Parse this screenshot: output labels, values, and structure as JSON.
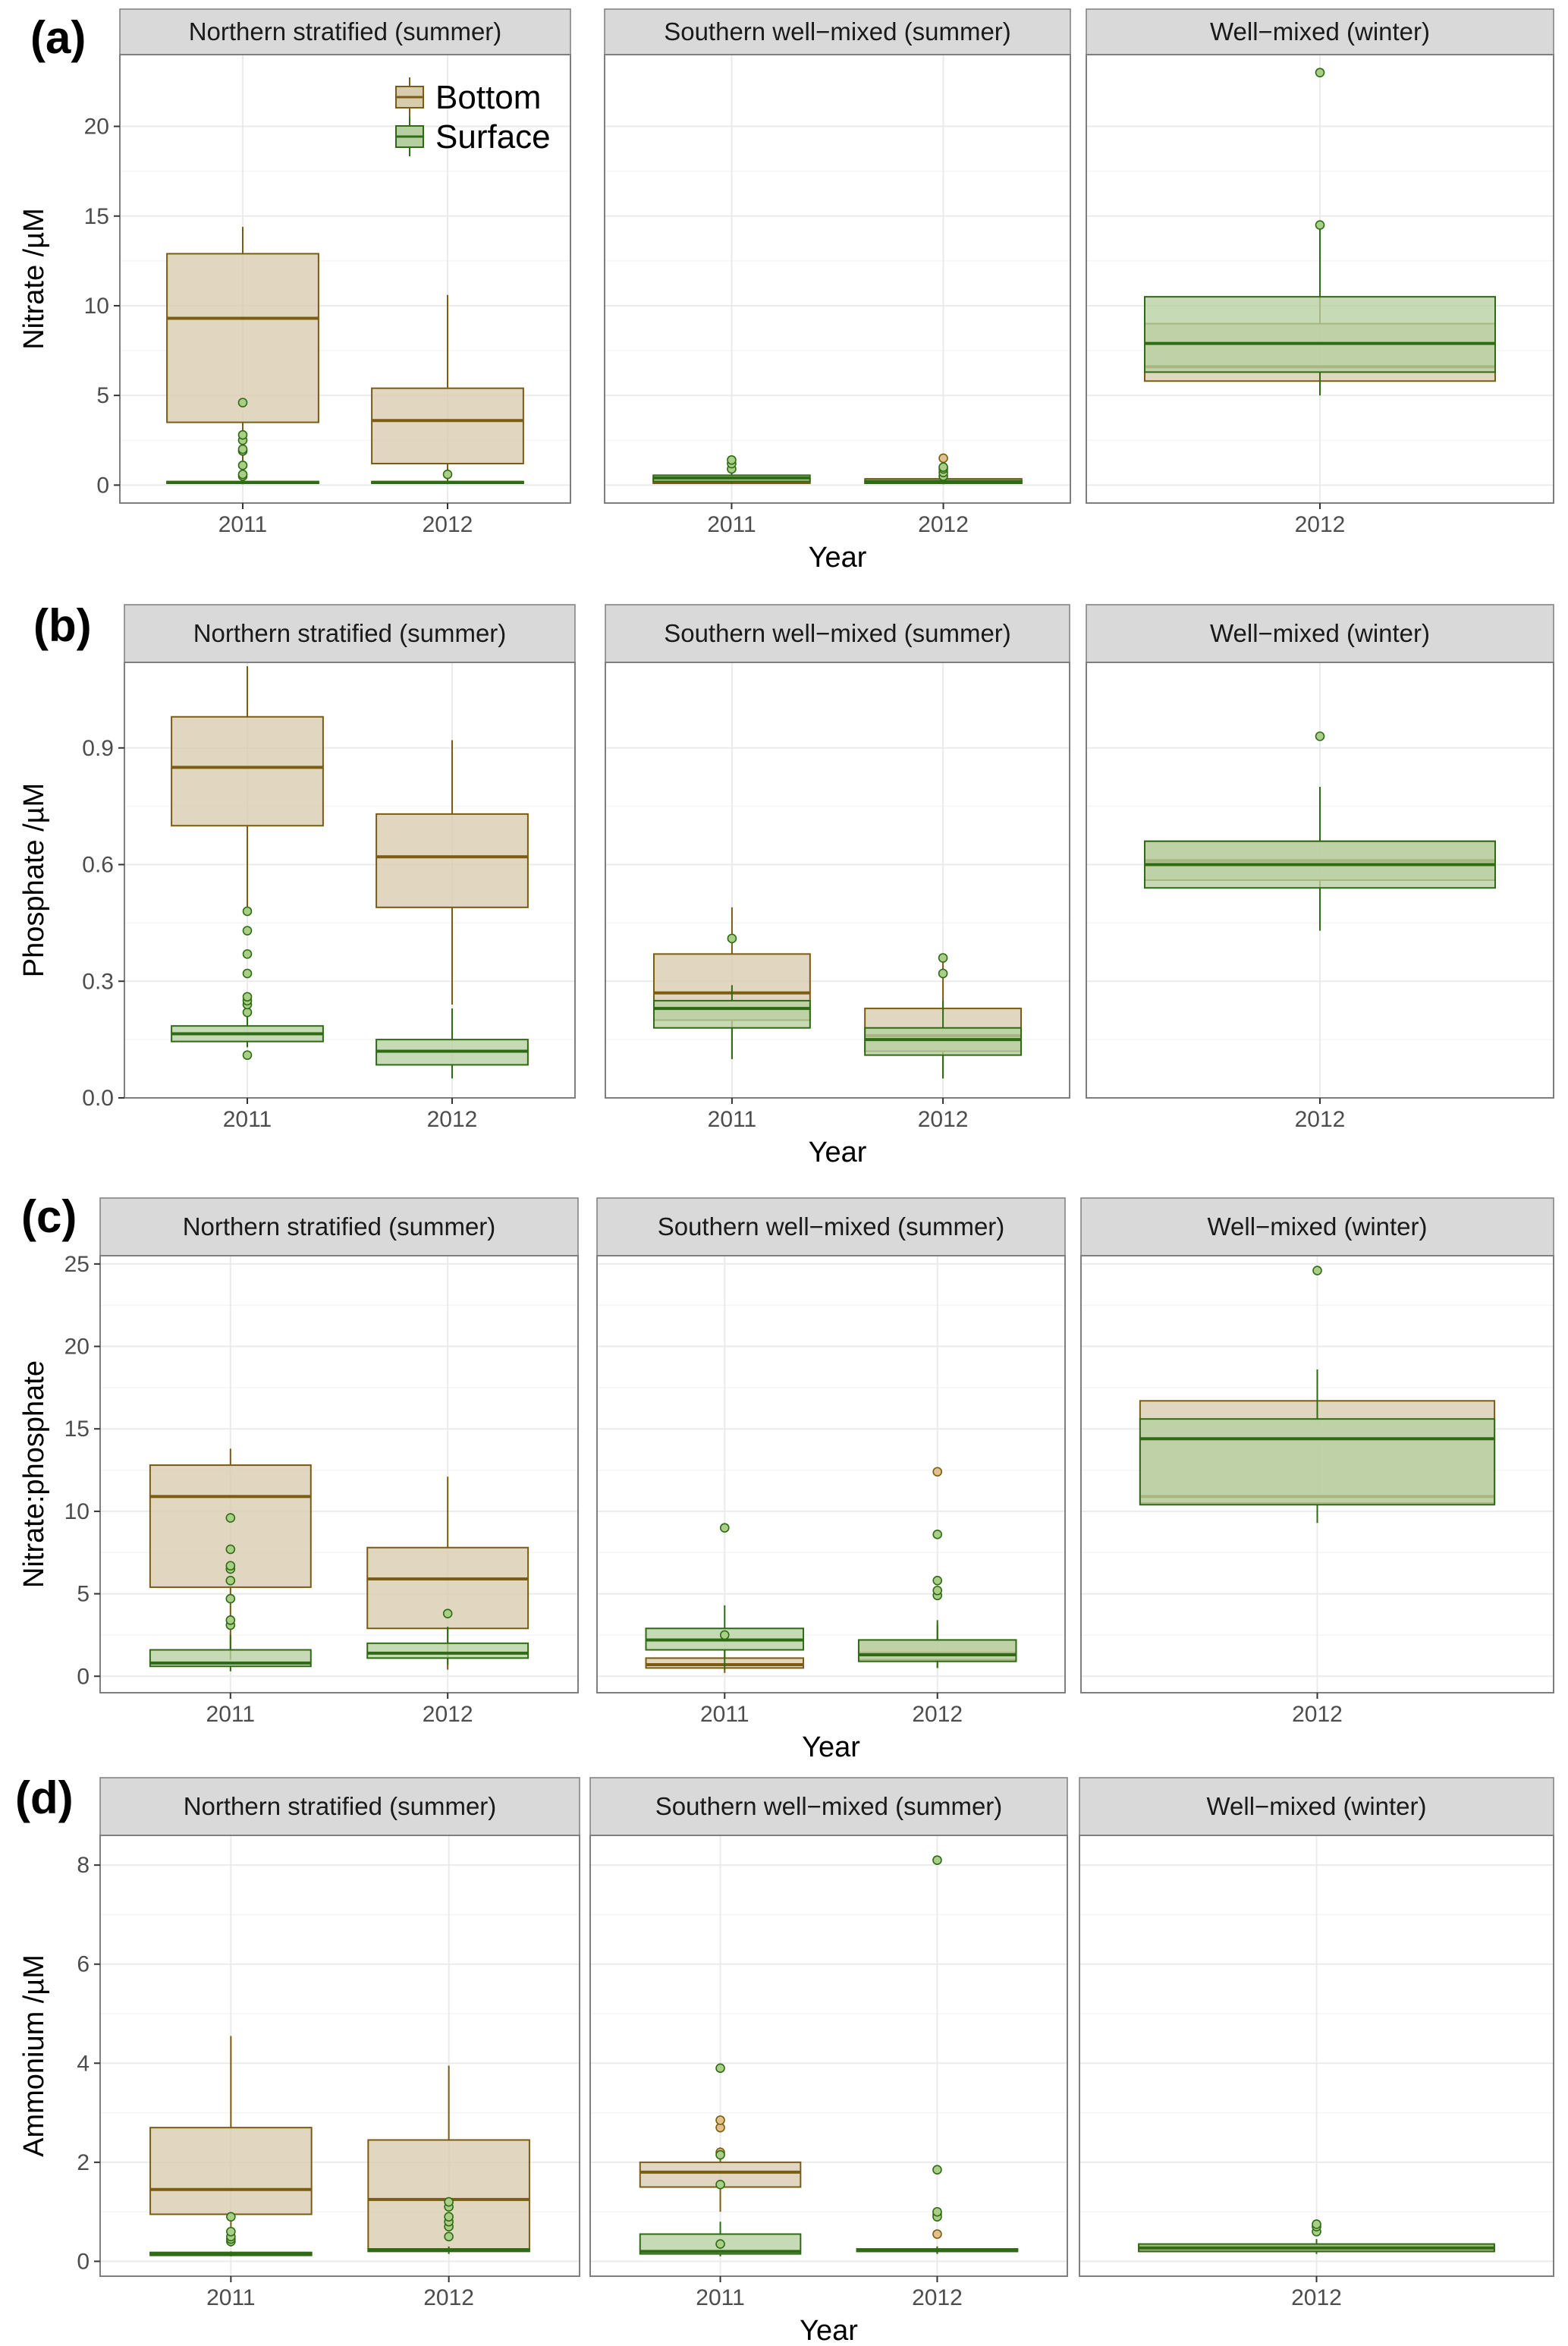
{
  "colors": {
    "bottom_fill": "#d8ccae",
    "bottom_line": "#7a5c12",
    "bottom_point_fill": "#e2c08a",
    "surface_fill": "#b5cfa0",
    "surface_line": "#2f6b14",
    "surface_point_fill": "#a9cf86",
    "strip_bg": "#d9d9d9",
    "panel_border": "#7f7f7f",
    "grid_major": "#ebebeb",
    "grid_minor": "#f5f5f5"
  },
  "legend": {
    "entries": [
      "Bottom",
      "Surface"
    ]
  },
  "chart_data": [
    {
      "type": "boxplot",
      "panel_label": "(a)",
      "ylabel": "Nitrate /µM",
      "xlabel": "Year",
      "ylim": [
        -1,
        24
      ],
      "yticks": [
        0,
        5,
        10,
        15,
        20
      ],
      "legend_position": "top-left panel",
      "facets": [
        {
          "title": "Northern stratified (summer)",
          "categories": [
            "2011",
            "2012"
          ],
          "boxes": [
            {
              "year": "2011",
              "group": "Bottom",
              "q1": 3.5,
              "median": 9.3,
              "q3": 12.9,
              "whisker_low": 0.3,
              "whisker_high": 14.4,
              "outliers": []
            },
            {
              "year": "2011",
              "group": "Surface",
              "q1": 0.1,
              "median": 0.15,
              "q3": 0.2,
              "whisker_low": 0.05,
              "whisker_high": 0.3,
              "outliers": [
                0.5,
                0.6,
                1.1,
                1.9,
                2.0,
                2.5,
                2.8,
                4.6
              ]
            },
            {
              "year": "2012",
              "group": "Bottom",
              "q1": 1.2,
              "median": 3.6,
              "q3": 5.4,
              "whisker_low": 0.1,
              "whisker_high": 10.6,
              "outliers": []
            },
            {
              "year": "2012",
              "group": "Surface",
              "q1": 0.1,
              "median": 0.15,
              "q3": 0.2,
              "whisker_low": 0.05,
              "whisker_high": 0.3,
              "outliers": [
                0.6
              ]
            }
          ]
        },
        {
          "title": "Southern well−mixed (summer)",
          "categories": [
            "2011",
            "2012"
          ],
          "boxes": [
            {
              "year": "2011",
              "group": "Bottom",
              "q1": 0.1,
              "median": 0.2,
              "q3": 0.35,
              "whisker_low": 0.05,
              "whisker_high": 0.5,
              "outliers": []
            },
            {
              "year": "2011",
              "group": "Surface",
              "q1": 0.2,
              "median": 0.4,
              "q3": 0.55,
              "whisker_low": 0.1,
              "whisker_high": 0.7,
              "outliers": [
                0.9,
                1.2,
                1.4
              ]
            },
            {
              "year": "2012",
              "group": "Bottom",
              "q1": 0.1,
              "median": 0.2,
              "q3": 0.35,
              "whisker_low": 0.05,
              "whisker_high": 0.5,
              "outliers": [
                1.5
              ]
            },
            {
              "year": "2012",
              "group": "Surface",
              "q1": 0.1,
              "median": 0.15,
              "q3": 0.25,
              "whisker_low": 0.05,
              "whisker_high": 0.35,
              "outliers": [
                0.5,
                0.7,
                0.9,
                1.0
              ]
            }
          ]
        },
        {
          "title": "Well−mixed (winter)",
          "categories": [
            "2012"
          ],
          "boxes": [
            {
              "year": "2012",
              "group": "Bottom",
              "q1": 5.8,
              "median": 6.6,
              "q3": 9.0,
              "whisker_low": 5.0,
              "whisker_high": 11.0,
              "outliers": []
            },
            {
              "year": "2012",
              "group": "Surface",
              "q1": 6.3,
              "median": 7.9,
              "q3": 10.5,
              "whisker_low": 5.0,
              "whisker_high": 14.5,
              "outliers": [
                14.5,
                23.0
              ]
            }
          ]
        }
      ]
    },
    {
      "type": "boxplot",
      "panel_label": "(b)",
      "ylabel": "Phosphate /µM",
      "xlabel": "Year",
      "ylim": [
        0,
        1.12
      ],
      "yticks": [
        0.0,
        0.3,
        0.6,
        0.9
      ],
      "facets": [
        {
          "title": "Northern stratified (summer)",
          "categories": [
            "2011",
            "2012"
          ],
          "boxes": [
            {
              "year": "2011",
              "group": "Bottom",
              "q1": 0.7,
              "median": 0.85,
              "q3": 0.98,
              "whisker_low": 0.47,
              "whisker_high": 1.11,
              "outliers": []
            },
            {
              "year": "2011",
              "group": "Surface",
              "q1": 0.145,
              "median": 0.165,
              "q3": 0.185,
              "whisker_low": 0.13,
              "whisker_high": 0.21,
              "outliers": [
                0.11,
                0.22,
                0.24,
                0.25,
                0.26,
                0.32,
                0.37,
                0.43,
                0.48
              ]
            },
            {
              "year": "2012",
              "group": "Bottom",
              "q1": 0.49,
              "median": 0.62,
              "q3": 0.73,
              "whisker_low": 0.24,
              "whisker_high": 0.92,
              "outliers": []
            },
            {
              "year": "2012",
              "group": "Surface",
              "q1": 0.085,
              "median": 0.12,
              "q3": 0.15,
              "whisker_low": 0.05,
              "whisker_high": 0.23,
              "outliers": []
            }
          ]
        },
        {
          "title": "Southern well−mixed (summer)",
          "categories": [
            "2011",
            "2012"
          ],
          "boxes": [
            {
              "year": "2011",
              "group": "Bottom",
              "q1": 0.2,
              "median": 0.27,
              "q3": 0.37,
              "whisker_low": 0.1,
              "whisker_high": 0.49,
              "outliers": []
            },
            {
              "year": "2011",
              "group": "Surface",
              "q1": 0.18,
              "median": 0.23,
              "q3": 0.25,
              "whisker_low": 0.1,
              "whisker_high": 0.29,
              "outliers": [
                0.41
              ]
            },
            {
              "year": "2012",
              "group": "Bottom",
              "q1": 0.12,
              "median": 0.16,
              "q3": 0.23,
              "whisker_low": 0.05,
              "whisker_high": 0.36,
              "outliers": []
            },
            {
              "year": "2012",
              "group": "Surface",
              "q1": 0.11,
              "median": 0.15,
              "q3": 0.18,
              "whisker_low": 0.05,
              "whisker_high": 0.25,
              "outliers": [
                0.32,
                0.36
              ]
            }
          ]
        },
        {
          "title": "Well−mixed (winter)",
          "categories": [
            "2012"
          ],
          "boxes": [
            {
              "year": "2012",
              "group": "Bottom",
              "q1": 0.56,
              "median": 0.61,
              "q3": 0.66,
              "whisker_low": 0.45,
              "whisker_high": 0.78,
              "outliers": []
            },
            {
              "year": "2012",
              "group": "Surface",
              "q1": 0.54,
              "median": 0.6,
              "q3": 0.66,
              "whisker_low": 0.43,
              "whisker_high": 0.8,
              "outliers": [
                0.93
              ]
            }
          ]
        }
      ]
    },
    {
      "type": "boxplot",
      "panel_label": "(c)",
      "ylabel": "Nitrate:phosphate",
      "xlabel": "Year",
      "ylim": [
        -1,
        25.5
      ],
      "yticks": [
        0,
        5,
        10,
        15,
        20,
        25
      ],
      "facets": [
        {
          "title": "Northern stratified (summer)",
          "categories": [
            "2011",
            "2012"
          ],
          "boxes": [
            {
              "year": "2011",
              "group": "Bottom",
              "q1": 5.4,
              "median": 10.9,
              "q3": 12.8,
              "whisker_low": 1.0,
              "whisker_high": 13.8,
              "outliers": []
            },
            {
              "year": "2011",
              "group": "Surface",
              "q1": 0.6,
              "median": 0.8,
              "q3": 1.6,
              "whisker_low": 0.3,
              "whisker_high": 2.5,
              "outliers": [
                3.1,
                3.4,
                4.7,
                5.8,
                6.5,
                6.7,
                7.7,
                9.6
              ]
            },
            {
              "year": "2012",
              "group": "Bottom",
              "q1": 2.9,
              "median": 5.9,
              "q3": 7.8,
              "whisker_low": 0.4,
              "whisker_high": 12.1,
              "outliers": []
            },
            {
              "year": "2012",
              "group": "Surface",
              "q1": 1.1,
              "median": 1.4,
              "q3": 2.0,
              "whisker_low": 0.7,
              "whisker_high": 3.0,
              "outliers": [
                3.8
              ]
            }
          ]
        },
        {
          "title": "Southern well−mixed (summer)",
          "categories": [
            "2011",
            "2012"
          ],
          "boxes": [
            {
              "year": "2011",
              "group": "Bottom",
              "q1": 0.5,
              "median": 0.7,
              "q3": 1.1,
              "whisker_low": 0.2,
              "whisker_high": 1.6,
              "outliers": []
            },
            {
              "year": "2011",
              "group": "Surface",
              "q1": 1.6,
              "median": 2.2,
              "q3": 2.9,
              "whisker_low": 0.4,
              "whisker_high": 4.3,
              "outliers": [
                2.5,
                9.0
              ]
            },
            {
              "year": "2012",
              "group": "Bottom",
              "q1": 1.0,
              "median": 1.4,
              "q3": 2.2,
              "whisker_low": 0.5,
              "whisker_high": 3.1,
              "outliers": [
                12.4
              ]
            },
            {
              "year": "2012",
              "group": "Surface",
              "q1": 0.9,
              "median": 1.3,
              "q3": 2.2,
              "whisker_low": 0.5,
              "whisker_high": 3.4,
              "outliers": [
                4.9,
                5.2,
                5.8,
                8.6
              ]
            }
          ]
        },
        {
          "title": "Well−mixed (winter)",
          "categories": [
            "2012"
          ],
          "boxes": [
            {
              "year": "2012",
              "group": "Bottom",
              "q1": 10.5,
              "median": 10.9,
              "q3": 16.7,
              "whisker_low": 9.3,
              "whisker_high": 18.6,
              "outliers": []
            },
            {
              "year": "2012",
              "group": "Surface",
              "q1": 10.4,
              "median": 14.4,
              "q3": 15.6,
              "whisker_low": 9.3,
              "whisker_high": 18.6,
              "outliers": [
                24.6
              ]
            }
          ]
        }
      ]
    },
    {
      "type": "boxplot",
      "panel_label": "(d)",
      "ylabel": "Ammonium /µM",
      "xlabel": "Year",
      "ylim": [
        -0.3,
        8.6
      ],
      "yticks": [
        0,
        2,
        4,
        6,
        8
      ],
      "facets": [
        {
          "title": "Northern stratified (summer)",
          "categories": [
            "2011",
            "2012"
          ],
          "boxes": [
            {
              "year": "2011",
              "group": "Bottom",
              "q1": 0.95,
              "median": 1.45,
              "q3": 2.7,
              "whisker_low": 0.3,
              "whisker_high": 4.55,
              "outliers": []
            },
            {
              "year": "2011",
              "group": "Surface",
              "q1": 0.12,
              "median": 0.15,
              "q3": 0.18,
              "whisker_low": 0.1,
              "whisker_high": 0.2,
              "outliers": [
                0.4,
                0.45,
                0.5,
                0.6,
                0.9
              ]
            },
            {
              "year": "2012",
              "group": "Bottom",
              "q1": 0.25,
              "median": 1.25,
              "q3": 2.45,
              "whisker_low": 0.2,
              "whisker_high": 3.95,
              "outliers": []
            },
            {
              "year": "2012",
              "group": "Surface",
              "q1": 0.2,
              "median": 0.22,
              "q3": 0.25,
              "whisker_low": 0.15,
              "whisker_high": 0.3,
              "outliers": [
                0.5,
                0.7,
                0.8,
                0.9,
                1.1,
                1.2
              ]
            }
          ]
        },
        {
          "title": "Southern well−mixed (summer)",
          "categories": [
            "2011",
            "2012"
          ],
          "boxes": [
            {
              "year": "2011",
              "group": "Bottom",
              "q1": 1.5,
              "median": 1.8,
              "q3": 2.0,
              "whisker_low": 1.0,
              "whisker_high": 2.3,
              "outliers": [
                2.2,
                2.7,
                2.85
              ]
            },
            {
              "year": "2011",
              "group": "Surface",
              "q1": 0.15,
              "median": 0.2,
              "q3": 0.55,
              "whisker_low": 0.1,
              "whisker_high": 0.8,
              "outliers": [
                0.35,
                1.55,
                2.15,
                3.9
              ]
            },
            {
              "year": "2012",
              "group": "Bottom",
              "q1": 0.2,
              "median": 0.22,
              "q3": 0.25,
              "whisker_low": 0.15,
              "whisker_high": 0.3,
              "outliers": [
                0.55,
                0.95
              ]
            },
            {
              "year": "2012",
              "group": "Surface",
              "q1": 0.2,
              "median": 0.22,
              "q3": 0.25,
              "whisker_low": 0.15,
              "whisker_high": 0.3,
              "outliers": [
                0.9,
                1.0,
                1.85,
                8.1
              ]
            }
          ]
        },
        {
          "title": "Well−mixed (winter)",
          "categories": [
            "2012"
          ],
          "boxes": [
            {
              "year": "2012",
              "group": "Bottom",
              "q1": 0.2,
              "median": 0.25,
              "q3": 0.32,
              "whisker_low": 0.15,
              "whisker_high": 0.4,
              "outliers": []
            },
            {
              "year": "2012",
              "group": "Surface",
              "q1": 0.2,
              "median": 0.27,
              "q3": 0.35,
              "whisker_low": 0.15,
              "whisker_high": 0.45,
              "outliers": [
                0.6,
                0.7,
                0.75
              ]
            }
          ]
        }
      ]
    }
  ]
}
